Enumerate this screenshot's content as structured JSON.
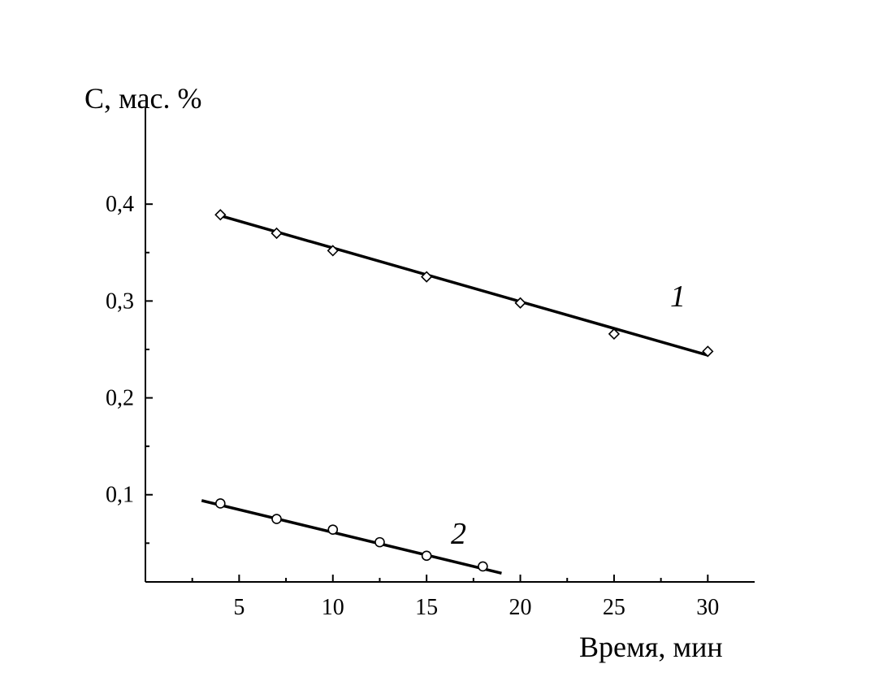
{
  "chart_data": {
    "type": "scatter",
    "xlabel": "Время, мин",
    "ylabel": "С, мас. %",
    "xlim": [
      0,
      32.5
    ],
    "ylim": [
      0.01,
      0.5
    ],
    "x_ticks": [
      5,
      10,
      15,
      20,
      25,
      30
    ],
    "x_tick_labels": [
      "5",
      "10",
      "15",
      "20",
      "25",
      "30"
    ],
    "x_minor_ticks": [
      2.5,
      7.5,
      12.5,
      17.5,
      22.5,
      27.5
    ],
    "y_ticks": [
      0.1,
      0.2,
      0.3,
      0.4
    ],
    "y_tick_labels": [
      "0,1",
      "0,2",
      "0,3",
      "0,4"
    ],
    "y_minor_ticks": [
      0.05,
      0.15,
      0.25,
      0.35
    ],
    "grid": false,
    "series": [
      {
        "name": "1",
        "marker": "diamond",
        "x": [
          4,
          7,
          10,
          15,
          20,
          25,
          30
        ],
        "y": [
          0.389,
          0.37,
          0.352,
          0.325,
          0.298,
          0.266,
          0.248
        ],
        "fit": {
          "x": [
            4,
            30
          ],
          "y": [
            0.388,
            0.244
          ]
        }
      },
      {
        "name": "2",
        "marker": "circle",
        "x": [
          4,
          7,
          10,
          12.5,
          15,
          18
        ],
        "y": [
          0.091,
          0.075,
          0.064,
          0.051,
          0.037,
          0.026
        ],
        "fit": {
          "x": [
            3,
            19
          ],
          "y": [
            0.094,
            0.019
          ]
        }
      }
    ]
  }
}
